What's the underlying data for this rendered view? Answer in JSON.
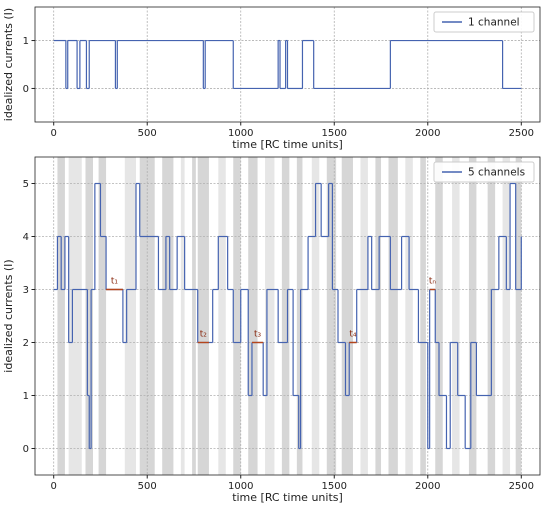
{
  "chart_data": [
    {
      "type": "step",
      "xlabel": "time [RC time units]",
      "ylabel": "idealized currents (I)",
      "xlim": [
        -100,
        2600
      ],
      "ylim": [
        -0.7,
        1.7
      ],
      "xticks": [
        0,
        500,
        1000,
        1500,
        2000,
        2500
      ],
      "yticks": [
        0,
        1
      ],
      "grid": true,
      "legend": "upper right",
      "series": [
        {
          "name": "1 channel",
          "color": "#4563b0",
          "x": [
            0,
            65,
            75,
            125,
            140,
            175,
            190,
            330,
            340,
            800,
            810,
            960,
            1200,
            1210,
            1240,
            1250,
            1330,
            1390,
            1800,
            2400,
            2500
          ],
          "values": [
            1,
            0,
            1,
            0,
            1,
            0,
            1,
            0,
            1,
            0,
            1,
            0,
            1,
            0,
            1,
            0,
            1,
            0,
            1,
            0,
            0
          ]
        }
      ]
    },
    {
      "type": "step",
      "xlabel": "time [RC time units]",
      "ylabel": "idealized currents (I)",
      "xlim": [
        -100,
        2600
      ],
      "ylim": [
        -0.5,
        5.5
      ],
      "xticks": [
        0,
        500,
        1000,
        1500,
        2000,
        2500
      ],
      "yticks": [
        0,
        1,
        2,
        3,
        4,
        5
      ],
      "grid": true,
      "legend": "upper right",
      "shaded": [
        [
          20,
          60
        ],
        [
          80,
          150
        ],
        [
          170,
          210
        ],
        [
          240,
          280
        ],
        [
          380,
          440
        ],
        [
          460,
          540
        ],
        [
          580,
          640
        ],
        [
          680,
          700
        ],
        [
          740,
          760
        ],
        [
          770,
          830
        ],
        [
          880,
          920
        ],
        [
          960,
          1000
        ],
        [
          1040,
          1090
        ],
        [
          1130,
          1180
        ],
        [
          1220,
          1260
        ],
        [
          1300,
          1330
        ],
        [
          1380,
          1420
        ],
        [
          1460,
          1510
        ],
        [
          1540,
          1600
        ],
        [
          1640,
          1680
        ],
        [
          1720,
          1750
        ],
        [
          1790,
          1840
        ],
        [
          1880,
          1920
        ],
        [
          1960,
          1990
        ],
        [
          2040,
          2080
        ],
        [
          2130,
          2170
        ],
        [
          2220,
          2260
        ],
        [
          2320,
          2360
        ],
        [
          2400,
          2440
        ],
        [
          2470,
          2500
        ]
      ],
      "series": [
        {
          "name": "5 channels",
          "color": "#4563b0",
          "x": [
            0,
            20,
            40,
            60,
            80,
            100,
            180,
            190,
            200,
            220,
            250,
            280,
            370,
            390,
            440,
            460,
            560,
            600,
            620,
            660,
            700,
            770,
            850,
            880,
            930,
            960,
            1000,
            1040,
            1060,
            1120,
            1140,
            1200,
            1250,
            1280,
            1310,
            1320,
            1360,
            1400,
            1430,
            1470,
            1490,
            1520,
            1560,
            1580,
            1620,
            1680,
            1700,
            1740,
            1800,
            1860,
            1900,
            1950,
            2000,
            2010,
            2040,
            2060,
            2100,
            2120,
            2160,
            2200,
            2230,
            2260,
            2340,
            2380,
            2420,
            2440,
            2470,
            2500
          ],
          "values": [
            3,
            4,
            3,
            4,
            2,
            3,
            1,
            0,
            3,
            5,
            4,
            3,
            2,
            3,
            5,
            4,
            3,
            4,
            3,
            4,
            3,
            2,
            3,
            4,
            3,
            2,
            3,
            1,
            2,
            1,
            3,
            2,
            3,
            1,
            0,
            3,
            4,
            5,
            4,
            5,
            3,
            2,
            1,
            2,
            3,
            4,
            3,
            4,
            3,
            4,
            3,
            2,
            0,
            3,
            2,
            1,
            0,
            2,
            1,
            0,
            2,
            1,
            3,
            4,
            3,
            5,
            3,
            4
          ]
        }
      ],
      "annotations": [
        {
          "text": "t₁",
          "x": [
            280,
            370
          ],
          "y": 3
        },
        {
          "text": "t₂",
          "x": [
            770,
            830
          ],
          "y": 2
        },
        {
          "text": "t₃",
          "x": [
            1060,
            1120
          ],
          "y": 2
        },
        {
          "text": "t₄",
          "x": [
            1580,
            1620
          ],
          "y": 2
        },
        {
          "text": "tₙ",
          "x": [
            2010,
            2040
          ],
          "y": 3
        }
      ]
    }
  ]
}
